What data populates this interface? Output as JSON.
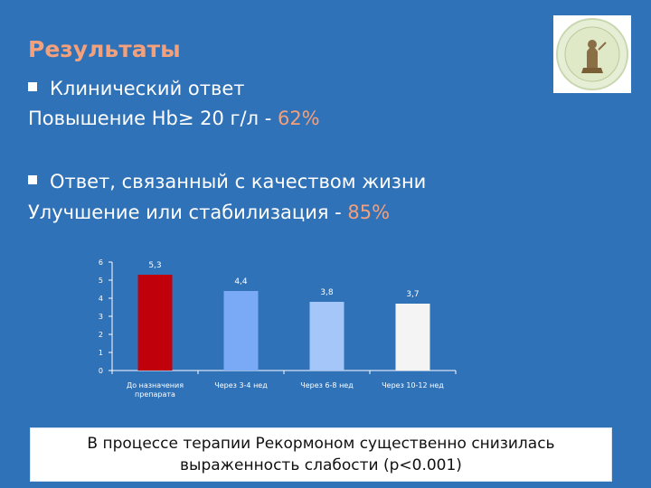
{
  "slide": {
    "title": "Результаты",
    "bullet1": {
      "text": "Клинический ответ"
    },
    "line1": {
      "text": "Повышение Hb≥ 20 г/л - ",
      "value": "62%"
    },
    "bullet2": {
      "text": "Ответ, связанный с качеством жизни"
    },
    "line2": {
      "text": "Улучшение или стабилизация  - ",
      "value": "85%"
    },
    "conclusion": {
      "line1": "В процессе терапии Рекормоном существенно снизилась",
      "line2": "выраженность слабости (p<0.001)"
    }
  },
  "colors": {
    "background": "#2f72b8",
    "accent": "#f3a07c",
    "bar_colors": [
      "#c0000b",
      "#7aaaf5",
      "#a5c6f8",
      "#f4f4f4"
    ]
  },
  "chart_data": {
    "type": "bar",
    "title": "",
    "xlabel": "",
    "ylabel": "",
    "categories": [
      [
        "До назначения",
        "препарата"
      ],
      [
        "Через 3-4 нед"
      ],
      [
        "Через 6-8 нед"
      ],
      [
        "Через 10-12 нед"
      ]
    ],
    "values": [
      5.3,
      4.4,
      3.8,
      3.7
    ],
    "value_labels": [
      "5,3",
      "4,4",
      "3,8",
      "3,7"
    ],
    "ylim": [
      0,
      6
    ],
    "yticks": [
      "0",
      "1",
      "2",
      "3",
      "4",
      "5",
      "6"
    ],
    "grid": false,
    "legend": "none"
  }
}
